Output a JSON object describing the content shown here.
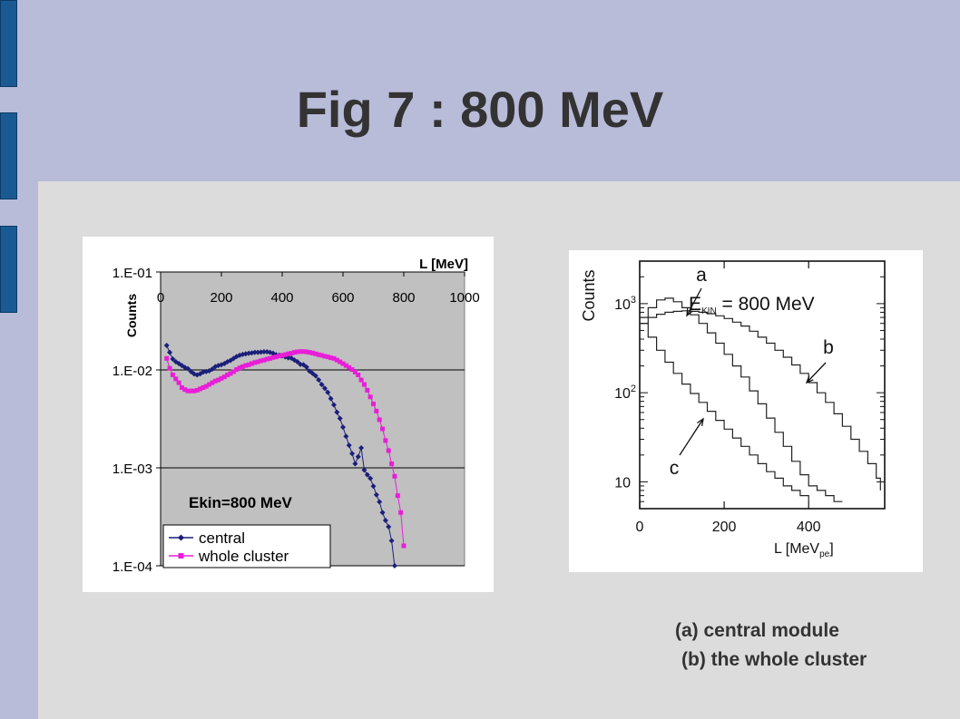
{
  "slide": {
    "title": "Fig 7 : 800 MeV",
    "captions": [
      "(a) central module",
      "(b) the whole cluster"
    ],
    "accent_color": "#b8bcd9",
    "tab_color": "#1a5a92"
  },
  "chart_data": [
    {
      "type": "scatter",
      "y_scale": "log",
      "xlabel": "L [MeV]",
      "ylabel": "Counts",
      "xlim": [
        0,
        1000
      ],
      "ylim": [
        0.0001,
        0.1
      ],
      "x_ticks": [
        "0",
        "200",
        "400",
        "600",
        "800",
        "1000"
      ],
      "y_ticks": [
        "1.E-01",
        "1.E-02",
        "1.E-03",
        "1.E-04"
      ],
      "x_axis_position": "top",
      "grid": "horizontal",
      "annotation": "Ekin=800 MeV",
      "legend_placement": "bottom-left",
      "series": [
        {
          "name": "central",
          "color": "#1b1f7a",
          "marker": "diamond",
          "x": [
            20,
            30,
            40,
            50,
            60,
            70,
            80,
            90,
            100,
            110,
            120,
            130,
            140,
            150,
            160,
            170,
            180,
            190,
            200,
            210,
            220,
            230,
            240,
            250,
            260,
            270,
            280,
            290,
            300,
            310,
            320,
            330,
            340,
            350,
            360,
            370,
            380,
            390,
            400,
            410,
            420,
            430,
            440,
            450,
            460,
            470,
            480,
            490,
            500,
            510,
            520,
            530,
            540,
            550,
            560,
            570,
            580,
            590,
            600,
            610,
            620,
            630,
            640,
            650,
            660,
            670,
            680,
            690,
            700,
            710,
            720,
            730,
            740,
            750,
            760,
            770
          ],
          "y": [
            0.0178,
            0.0151,
            0.0129,
            0.0121,
            0.0116,
            0.0111,
            0.0106,
            0.0103,
            0.0096,
            0.0091,
            0.0089,
            0.0091,
            0.0095,
            0.0096,
            0.0098,
            0.0102,
            0.0108,
            0.0111,
            0.0113,
            0.0116,
            0.0121,
            0.0125,
            0.0131,
            0.0137,
            0.0141,
            0.0144,
            0.0146,
            0.0148,
            0.0149,
            0.0151,
            0.0151,
            0.0152,
            0.0153,
            0.0153,
            0.0151,
            0.0148,
            0.0143,
            0.0141,
            0.0139,
            0.0136,
            0.0133,
            0.0132,
            0.0126,
            0.0121,
            0.0114,
            0.0113,
            0.0107,
            0.0097,
            0.0092,
            0.0087,
            0.0079,
            0.0071,
            0.0065,
            0.0059,
            0.0051,
            0.0044,
            0.0037,
            0.0032,
            0.0026,
            0.0021,
            0.0017,
            0.0014,
            0.0011,
            0.0013,
            0.0016,
            0.00095,
            0.00085,
            0.00078,
            0.00065,
            0.00053,
            0.00045,
            0.00035,
            0.00029,
            0.00025,
            0.00018,
            0.0001
          ]
        },
        {
          "name": "whole cluster",
          "color": "#e81ed8",
          "marker": "square",
          "x": [
            20,
            30,
            40,
            50,
            60,
            70,
            80,
            90,
            100,
            110,
            120,
            130,
            140,
            150,
            160,
            170,
            180,
            190,
            200,
            210,
            220,
            230,
            240,
            250,
            260,
            270,
            280,
            290,
            300,
            310,
            320,
            330,
            340,
            350,
            360,
            370,
            380,
            390,
            400,
            410,
            420,
            430,
            440,
            450,
            460,
            470,
            480,
            490,
            500,
            510,
            520,
            530,
            540,
            550,
            560,
            570,
            580,
            590,
            600,
            610,
            620,
            630,
            640,
            650,
            660,
            670,
            680,
            690,
            700,
            710,
            720,
            730,
            740,
            750,
            760,
            770,
            780,
            790,
            800
          ],
          "y": [
            0.0131,
            0.0104,
            0.0089,
            0.0081,
            0.0074,
            0.0066,
            0.0063,
            0.0061,
            0.0061,
            0.0061,
            0.0062,
            0.0064,
            0.0066,
            0.0068,
            0.0071,
            0.0074,
            0.0077,
            0.0079,
            0.0082,
            0.0085,
            0.0089,
            0.0092,
            0.0096,
            0.0101,
            0.0105,
            0.0108,
            0.0111,
            0.0113,
            0.0116,
            0.0119,
            0.0121,
            0.0124,
            0.0126,
            0.0129,
            0.0131,
            0.0134,
            0.0136,
            0.0139,
            0.0141,
            0.0143,
            0.0146,
            0.0148,
            0.0151,
            0.0153,
            0.0154,
            0.0154,
            0.0153,
            0.0151,
            0.0149,
            0.0146,
            0.0143,
            0.0141,
            0.0138,
            0.0136,
            0.0133,
            0.0131,
            0.0126,
            0.0121,
            0.0116,
            0.0111,
            0.0106,
            0.0101,
            0.0095,
            0.0089,
            0.0079,
            0.0071,
            0.0062,
            0.0053,
            0.0045,
            0.0038,
            0.0031,
            0.0025,
            0.0019,
            0.0015,
            0.0011,
            0.00082,
            0.00052,
            0.00035,
            0.00016
          ]
        }
      ]
    },
    {
      "type": "line",
      "y_scale": "log",
      "ylabel": "Counts",
      "xlabel": "L [MeV",
      "xlabel_subscript": "pe",
      "xlabel_suffix": "]",
      "xlim": [
        0,
        580
      ],
      "ylim": [
        5,
        3000
      ],
      "x_ticks": [
        0,
        200,
        400
      ],
      "y_ticks": [
        {
          "base": "10",
          "exp": "3",
          "value": 1000
        },
        {
          "base": "10",
          "exp": "2",
          "value": 100
        },
        {
          "base": "10",
          "exp": "",
          "value": 10
        }
      ],
      "annotation": {
        "label": "E",
        "subscript": "KIN",
        "rest": " = 800 MeV"
      },
      "curve_labels": [
        "a",
        "b",
        "c"
      ],
      "series": [
        {
          "name": "a",
          "x": [
            0,
            20,
            40,
            60,
            80,
            100,
            120,
            140,
            160,
            180,
            200,
            220,
            240,
            260,
            280,
            300,
            320,
            340,
            360,
            380,
            400,
            420,
            440,
            460,
            480
          ],
          "y": [
            700,
            900,
            1100,
            1150,
            1050,
            900,
            750,
            600,
            470,
            360,
            270,
            200,
            150,
            105,
            75,
            52,
            36,
            25,
            17,
            12,
            9,
            8,
            7,
            6,
            6
          ]
        },
        {
          "name": "b",
          "x": [
            0,
            20,
            40,
            60,
            80,
            100,
            120,
            140,
            160,
            180,
            200,
            220,
            240,
            260,
            280,
            300,
            320,
            340,
            360,
            380,
            400,
            420,
            440,
            460,
            480,
            500,
            520,
            540,
            560,
            570
          ],
          "y": [
            600,
            700,
            760,
            800,
            820,
            830,
            820,
            800,
            770,
            730,
            680,
            620,
            560,
            490,
            420,
            360,
            300,
            250,
            205,
            165,
            130,
            100,
            78,
            58,
            42,
            30,
            22,
            16,
            11,
            8
          ]
        },
        {
          "name": "c",
          "x": [
            0,
            20,
            40,
            60,
            80,
            100,
            120,
            140,
            160,
            180,
            200,
            220,
            240,
            260,
            280,
            300,
            320,
            340,
            360,
            380,
            400
          ],
          "y": [
            600,
            420,
            300,
            220,
            165,
            125,
            98,
            78,
            62,
            49,
            39,
            31,
            25,
            20,
            16,
            13,
            11,
            9,
            8,
            7,
            6
          ]
        }
      ]
    }
  ]
}
